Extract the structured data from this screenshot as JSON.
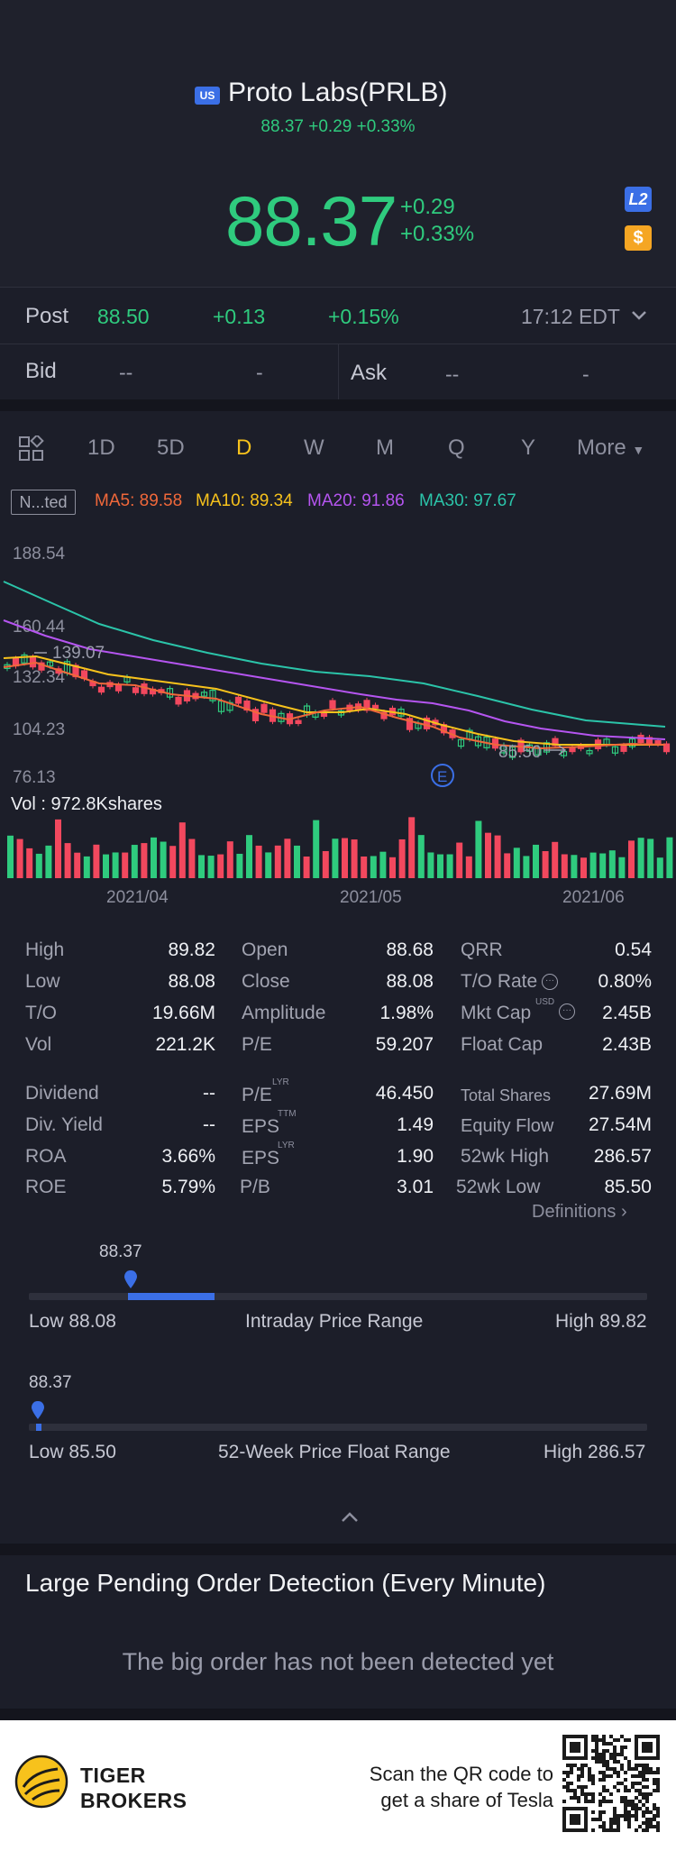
{
  "header": {
    "market_badge": "US",
    "title": "Proto Labs(PRLB)",
    "subline": "88.37 +0.29 +0.33%",
    "price": "88.37",
    "change": "+0.29",
    "change_pct": "+0.33%",
    "l2_badge": "L2",
    "dollar_badge": "$"
  },
  "post": {
    "label": "Post",
    "price": "88.50",
    "change": "+0.13",
    "change_pct": "+0.15%",
    "time": "17:12 EDT"
  },
  "quote": {
    "bid_label": "Bid",
    "bid_price": "--",
    "bid_size": "-",
    "ask_label": "Ask",
    "ask_price": "--",
    "ask_size": "-"
  },
  "periods": {
    "items": [
      "1D",
      "5D",
      "D",
      "W",
      "M",
      "Q",
      "Y"
    ],
    "active": "D",
    "more": "More"
  },
  "chart": {
    "adjust_label": "N...ted",
    "ma5": "MA5: 89.58",
    "ma10": "MA10: 89.34",
    "ma20": "MA20: 91.86",
    "ma30": "MA30: 97.67",
    "y_labels": [
      "188.54",
      "160.44",
      "132.34",
      "104.23",
      "76.13"
    ],
    "high_marker": "139.07",
    "low_marker": "85.50",
    "earnings_badge": "E",
    "volume_label": "Vol  : 972.8Kshares",
    "dates": [
      "2021/04",
      "2021/05",
      "2021/06"
    ],
    "colors": {
      "ma5": "#f0683a",
      "ma10": "#f7c21c",
      "ma20": "#b555f0",
      "ma30": "#2bc4a9",
      "up": "#2fcb7e",
      "down": "#f2485e"
    }
  },
  "chart_data": {
    "type": "candlestick",
    "title": "Proto Labs(PRLB) daily",
    "ylim": [
      76.13,
      188.54
    ],
    "y_ticks": [
      188.54,
      160.44,
      132.34,
      104.23,
      76.13
    ],
    "x_ticks": [
      "2021/04",
      "2021/05",
      "2021/06"
    ],
    "series": [
      {
        "name": "MA5",
        "value": 89.58
      },
      {
        "name": "MA10",
        "value": 89.34
      },
      {
        "name": "MA20",
        "value": 91.86
      },
      {
        "name": "MA30",
        "value": 97.67
      }
    ],
    "annotations": {
      "period_high": 139.07,
      "period_low": 85.5
    },
    "volume_last": "972.8Kshares"
  },
  "stats": {
    "col1": [
      {
        "label": "High",
        "value": "89.82"
      },
      {
        "label": "Low",
        "value": "88.08"
      },
      {
        "label": "T/O",
        "value": "19.66M"
      },
      {
        "label": "Vol",
        "value": "221.2K"
      }
    ],
    "col2": [
      {
        "label": "Open",
        "value": "88.68"
      },
      {
        "label": "Close",
        "value": "88.08"
      },
      {
        "label": "Amplitude",
        "value": "1.98%"
      },
      {
        "label": "P/E",
        "value": "59.207"
      }
    ],
    "col3": [
      {
        "label": "QRR",
        "value": "0.54"
      },
      {
        "label": "T/O Rate",
        "value": "0.80%"
      },
      {
        "label": "Mkt Cap",
        "value": "2.45B",
        "sup": "USD"
      },
      {
        "label": "Float Cap",
        "value": "2.43B"
      }
    ],
    "col1b": [
      {
        "label": "Dividend",
        "value": "--"
      },
      {
        "label": "Div. Yield",
        "value": "--"
      },
      {
        "label": "ROA",
        "value": "3.66%"
      },
      {
        "label": "ROE",
        "value": "5.79%"
      }
    ],
    "col2b": [
      {
        "label": "P/E",
        "value": "46.450",
        "sup": "LYR"
      },
      {
        "label": "EPS",
        "value": "1.49",
        "sup": "TTM"
      },
      {
        "label": "EPS",
        "value": "1.90",
        "sup": "LYR"
      },
      {
        "label": "P/B",
        "value": "3.01"
      }
    ],
    "col3b": [
      {
        "label": "Total Shares",
        "value": "27.69M"
      },
      {
        "label": "Equity Flow",
        "value": "27.54M"
      },
      {
        "label": "52wk High",
        "value": "286.57"
      },
      {
        "label": "52wk Low",
        "value": "85.50"
      }
    ],
    "definitions": "Definitions"
  },
  "intraday": {
    "current": "88.37",
    "low": "Low 88.08",
    "title": "Intraday Price Range",
    "high": "High 89.82",
    "position": 0.16,
    "fill_fraction": 0.14
  },
  "week52": {
    "current": "88.37",
    "low": "Low 85.50",
    "title": "52-Week Price Float Range",
    "high": "High 286.57",
    "position": 0.014
  },
  "pending": {
    "title": "Large Pending Order Detection (Every Minute)",
    "message": "The big order has not been detected yet"
  },
  "footer": {
    "brand_line1": "TIGER",
    "brand_line2": "BROKERS",
    "scan_line1": "Scan the QR code to",
    "scan_line2": "get a share of Tesla"
  }
}
